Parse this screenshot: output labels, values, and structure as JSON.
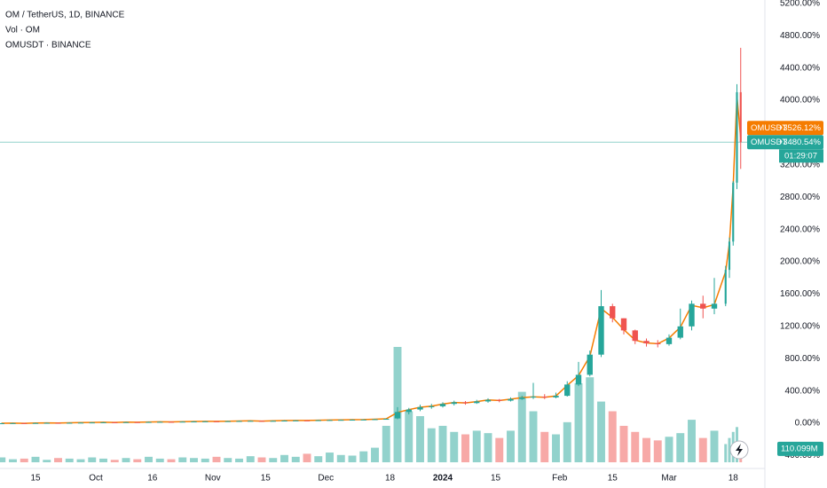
{
  "chart_data": {
    "type": "candlestick",
    "legend": [
      "OM / TetherUS, 1D, BINANCE",
      "Vol · OM",
      "OMUSDT · BINANCE"
    ],
    "x": [
      "09-06",
      "09-09",
      "09-12",
      "09-15",
      "09-18",
      "09-21",
      "09-24",
      "09-27",
      "09-30",
      "10-03",
      "10-06",
      "10-09",
      "10-12",
      "10-15",
      "10-18",
      "10-21",
      "10-24",
      "10-27",
      "10-30",
      "11-02",
      "11-05",
      "11-08",
      "11-11",
      "11-14",
      "11-17",
      "11-20",
      "11-23",
      "11-26",
      "11-29",
      "12-02",
      "12-05",
      "12-08",
      "12-11",
      "12-14",
      "12-17",
      "12-20",
      "12-23",
      "12-26",
      "12-29",
      "01-01",
      "01-04",
      "01-07",
      "01-10",
      "01-13",
      "01-16",
      "01-19",
      "01-22",
      "01-25",
      "01-28",
      "01-31",
      "02-03",
      "02-06",
      "02-09",
      "02-12",
      "02-15",
      "02-18",
      "02-21",
      "02-24",
      "02-27",
      "03-01",
      "03-04",
      "03-07",
      "03-10",
      "03-13",
      "03-16",
      "03-17",
      "03-18",
      "03-19",
      "03-20"
    ],
    "open": [
      -2,
      0,
      2,
      -1,
      3,
      5,
      4,
      6,
      8,
      10,
      12,
      10,
      14,
      13,
      16,
      18,
      17,
      20,
      22,
      24,
      23,
      26,
      28,
      30,
      27,
      30,
      33,
      35,
      34,
      38,
      40,
      42,
      44,
      46,
      50,
      60,
      140,
      170,
      200,
      210,
      240,
      260,
      250,
      270,
      290,
      280,
      300,
      320,
      330,
      320,
      340,
      480,
      600,
      850,
      1450,
      1300,
      1150,
      1020,
      990,
      980,
      1060,
      1200,
      1480,
      1420,
      1480,
      1900,
      2250,
      2980,
      4100
    ],
    "high": [
      4,
      6,
      6,
      7,
      9,
      8,
      10,
      12,
      14,
      16,
      15,
      18,
      17,
      20,
      22,
      21,
      24,
      26,
      28,
      28,
      30,
      32,
      34,
      33,
      34,
      37,
      39,
      38,
      42,
      44,
      46,
      48,
      50,
      54,
      60,
      200,
      190,
      230,
      240,
      260,
      280,
      275,
      290,
      310,
      300,
      320,
      340,
      500,
      360,
      380,
      520,
      760,
      900,
      1650,
      1480,
      1300,
      1160,
      1050,
      1030,
      1100,
      1420,
      1520,
      1580,
      1800,
      1950,
      2300,
      3000,
      4200,
      4650
    ],
    "low": [
      -5,
      -3,
      -4,
      -4,
      0,
      1,
      1,
      3,
      5,
      7,
      7,
      8,
      9,
      10,
      13,
      14,
      14,
      17,
      19,
      20,
      20,
      23,
      25,
      25,
      24,
      27,
      30,
      31,
      31,
      35,
      37,
      38,
      41,
      43,
      47,
      50,
      110,
      150,
      180,
      195,
      220,
      230,
      240,
      255,
      260,
      270,
      290,
      300,
      300,
      310,
      330,
      460,
      580,
      820,
      1250,
      1100,
      980,
      950,
      940,
      960,
      1040,
      1150,
      1300,
      1350,
      1450,
      1800,
      2200,
      2900,
      3150
    ],
    "close": [
      0,
      2,
      -1,
      3,
      5,
      4,
      6,
      8,
      10,
      12,
      10,
      14,
      13,
      16,
      18,
      17,
      20,
      22,
      24,
      23,
      26,
      28,
      30,
      27,
      30,
      33,
      35,
      34,
      38,
      40,
      42,
      44,
      46,
      50,
      55,
      140,
      170,
      200,
      210,
      240,
      260,
      250,
      270,
      290,
      280,
      300,
      320,
      330,
      320,
      340,
      480,
      600,
      850,
      1450,
      1300,
      1150,
      1020,
      990,
      980,
      1060,
      1200,
      1480,
      1420,
      1480,
      1900,
      2250,
      2980,
      4100,
      3480.54
    ],
    "volume": [
      40,
      25,
      30,
      45,
      20,
      35,
      30,
      25,
      40,
      30,
      20,
      35,
      25,
      45,
      30,
      25,
      40,
      35,
      30,
      45,
      35,
      30,
      50,
      40,
      35,
      60,
      45,
      70,
      50,
      80,
      60,
      55,
      90,
      120,
      300,
      950,
      420,
      380,
      280,
      300,
      250,
      230,
      260,
      240,
      200,
      260,
      580,
      420,
      250,
      230,
      330,
      650,
      700,
      500,
      420,
      300,
      250,
      200,
      180,
      210,
      240,
      350,
      200,
      260,
      150,
      200,
      250,
      290,
      110.099
    ],
    "up_color": "#26a69a",
    "down_color": "#ef5350",
    "compare": {
      "name": "OMUSDT",
      "color": "#f57c00",
      "last_label": "+3526.12%",
      "values": [
        0,
        2,
        -1,
        3,
        5,
        4,
        6,
        8,
        10,
        12,
        10,
        14,
        13,
        16,
        18,
        17,
        20,
        22,
        24,
        23,
        26,
        28,
        30,
        27,
        30,
        33,
        35,
        34,
        38,
        40,
        42,
        44,
        46,
        50,
        55,
        135,
        168,
        198,
        212,
        238,
        258,
        252,
        268,
        288,
        282,
        298,
        318,
        328,
        322,
        338,
        470,
        590,
        830,
        1420,
        1310,
        1160,
        1030,
        995,
        985,
        1055,
        1190,
        1460,
        1430,
        1470,
        1880,
        2230,
        2950,
        4050,
        3526.12
      ]
    },
    "last_name": "OMUSDT",
    "last_label": "+3480.54%",
    "countdown": "01:29:07",
    "volume_last_label": "110.099M",
    "ylim": [
      -560,
      5242
    ],
    "yticks": [
      {
        "value": -400,
        "label": "-400.00%"
      },
      {
        "value": 0,
        "label": "0.00%"
      },
      {
        "value": 400,
        "label": "400.00%"
      },
      {
        "value": 800,
        "label": "800.00%"
      },
      {
        "value": 1200,
        "label": "1200.00%"
      },
      {
        "value": 1600,
        "label": "1600.00%"
      },
      {
        "value": 2000,
        "label": "2000.00%"
      },
      {
        "value": 2400,
        "label": "2400.00%"
      },
      {
        "value": 2800,
        "label": "2800.00%"
      },
      {
        "value": 3200,
        "label": "3200.00%"
      },
      {
        "value": 3600,
        "label": "3600.00%"
      },
      {
        "value": 4000,
        "label": "4000.00%"
      },
      {
        "value": 4400,
        "label": "4400.00%"
      },
      {
        "value": 4800,
        "label": "4800.00%"
      },
      {
        "value": 5200,
        "label": "5200.00%"
      }
    ],
    "xticks": [
      {
        "value": "09-15",
        "label": "15"
      },
      {
        "value": "10-01",
        "label": "Oct"
      },
      {
        "value": "10-16",
        "label": "16"
      },
      {
        "value": "11-01",
        "label": "Nov"
      },
      {
        "value": "11-15",
        "label": "15"
      },
      {
        "value": "12-01",
        "label": "Dec"
      },
      {
        "value": "12-18",
        "label": "18"
      },
      {
        "value": "01-01",
        "label": "2024"
      },
      {
        "value": "01-15",
        "label": "15"
      },
      {
        "value": "02-01",
        "label": "Feb"
      },
      {
        "value": "02-15",
        "label": "15"
      },
      {
        "value": "03-01",
        "label": "Mar"
      },
      {
        "value": "03-18",
        "label": "18"
      }
    ]
  }
}
